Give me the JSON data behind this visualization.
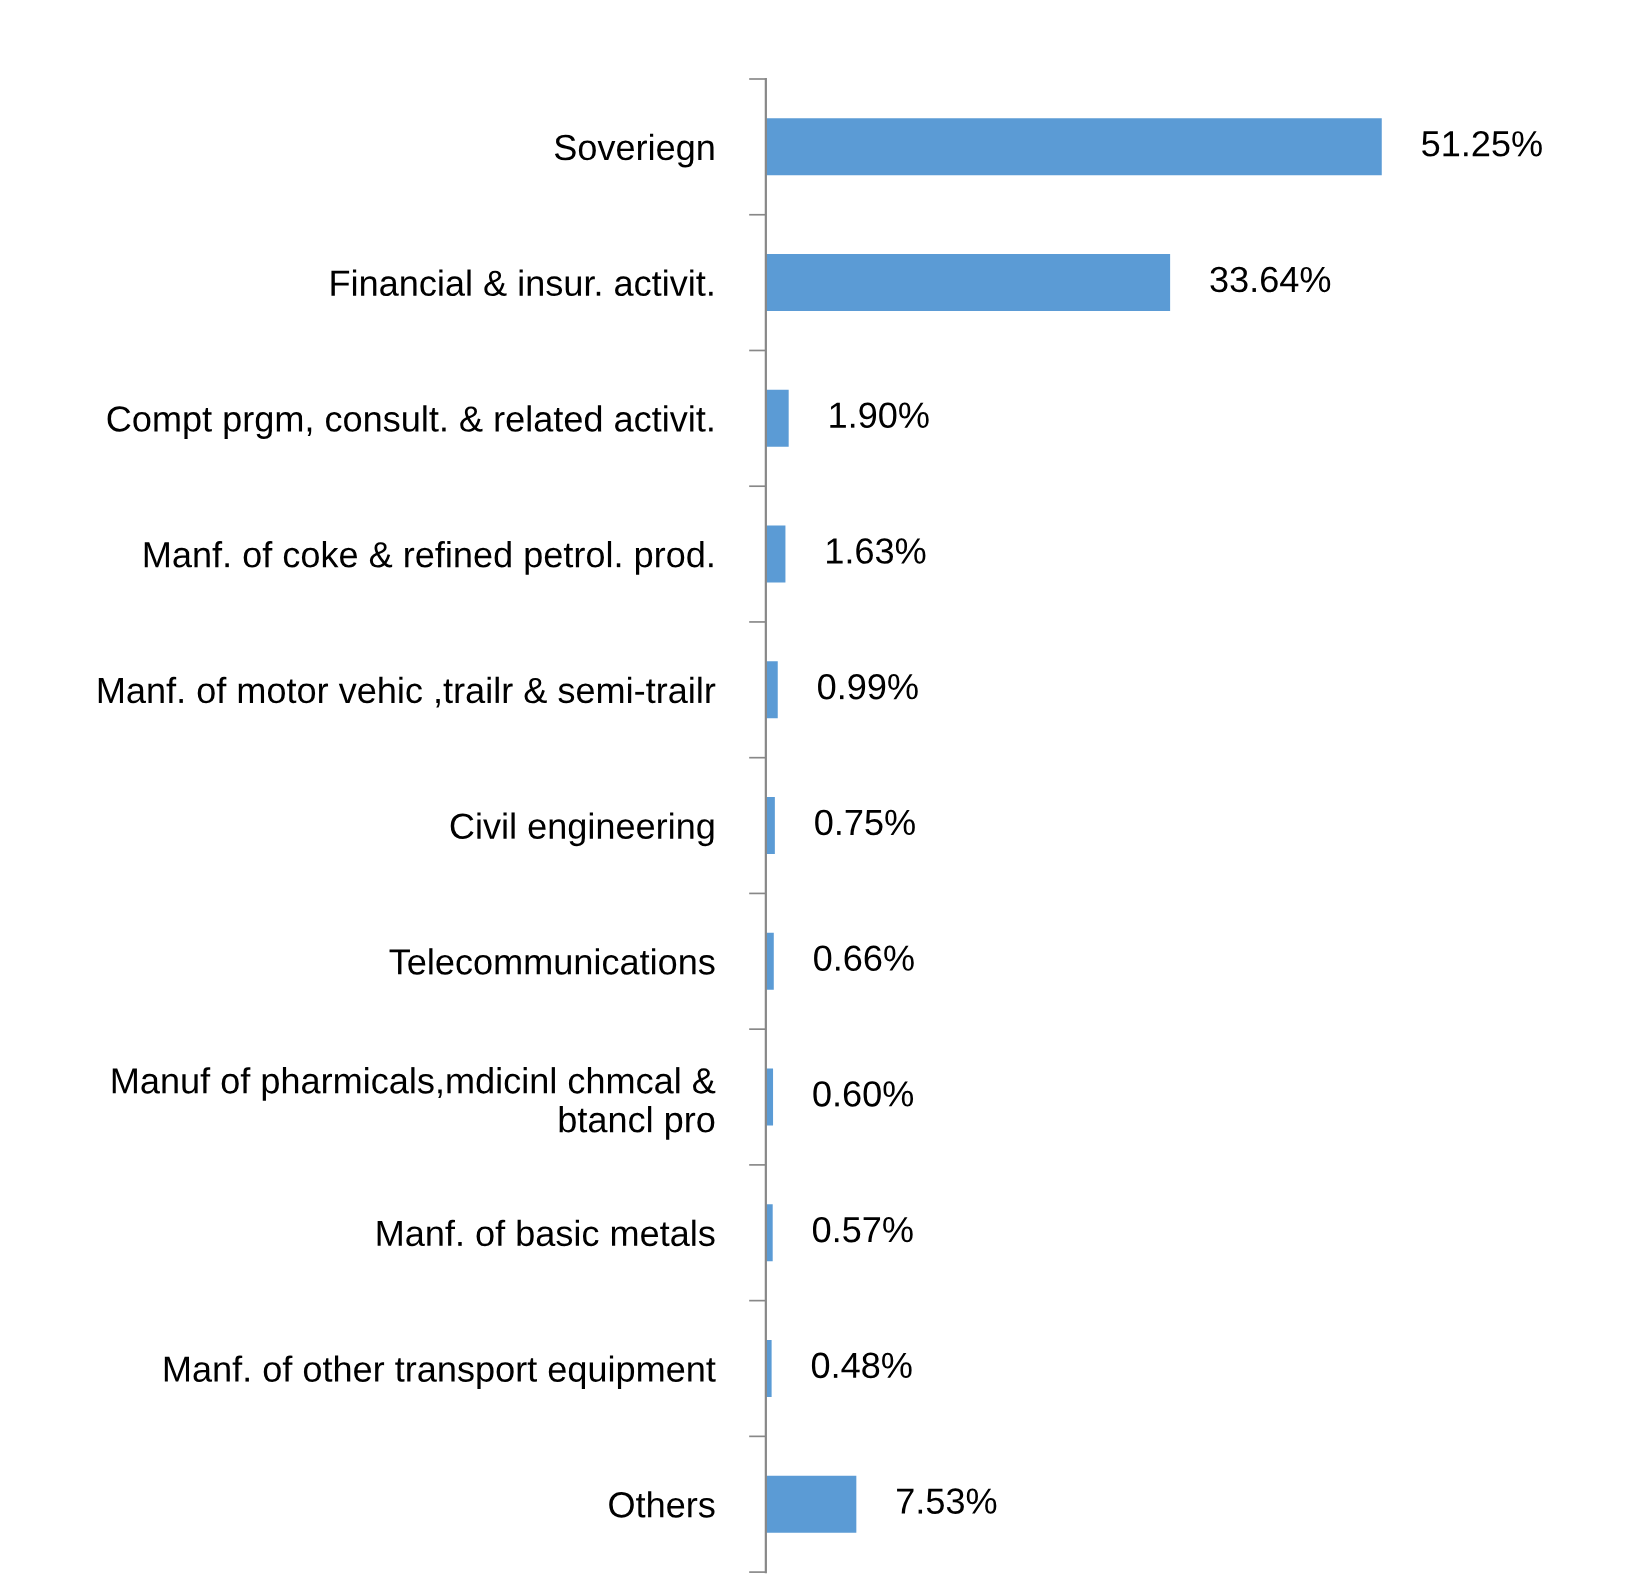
{
  "chart_data": {
    "type": "bar",
    "orientation": "horizontal",
    "categories": [
      "Soveriegn",
      "Financial & insur. activit.",
      "Compt prgm, consult. & related activit.",
      "Manf. of coke & refined petrol. prod.",
      "Manf. of motor vehic ,trailr & semi-trailr",
      "Civil engineering",
      "Telecommunications",
      "Manuf of pharmicals,mdicinl chmcal &\nbtancl pro",
      "Manf. of basic metals",
      "Manf. of other transport equipment",
      "Others"
    ],
    "values": [
      51.25,
      33.64,
      1.9,
      1.63,
      0.99,
      0.75,
      0.66,
      0.6,
      0.57,
      0.48,
      7.53
    ],
    "value_labels": [
      "51.25%",
      "33.64%",
      "1.90%",
      "1.63%",
      "0.99%",
      "0.75%",
      "0.66%",
      "0.60%",
      "0.57%",
      "0.48%",
      "7.53%"
    ],
    "color": "#5b9bd5",
    "grid": false,
    "legend": false
  }
}
